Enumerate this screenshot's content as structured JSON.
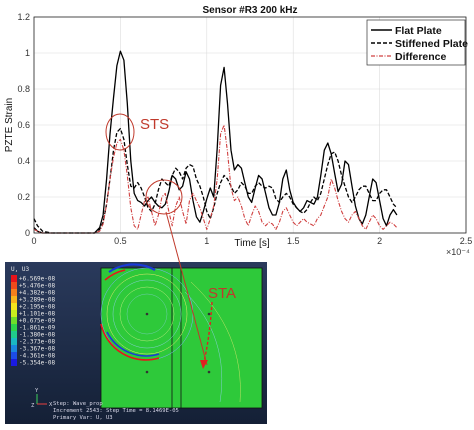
{
  "chart_data": {
    "type": "line",
    "title": "Sensor #R3 200 kHz",
    "xlabel": "Time [s]",
    "ylabel": "PZTE Strain",
    "x_multiplier": "×10⁻⁴",
    "xlim": [
      0,
      2.5
    ],
    "ylim": [
      0,
      1.2
    ],
    "xticks": [
      "0",
      "0.5",
      "1",
      "1.5",
      "2",
      "2.5"
    ],
    "yticks": [
      "0",
      "0.2",
      "0.4",
      "0.6",
      "0.8",
      "1",
      "1.2"
    ],
    "grid": true,
    "legend": "top-right",
    "x": [
      0,
      0.02,
      0.05,
      0.1,
      0.2,
      0.3,
      0.35,
      0.38,
      0.4,
      0.42,
      0.44,
      0.46,
      0.48,
      0.5,
      0.52,
      0.54,
      0.56,
      0.58,
      0.6,
      0.62,
      0.64,
      0.66,
      0.68,
      0.7,
      0.72,
      0.74,
      0.76,
      0.78,
      0.8,
      0.82,
      0.84,
      0.86,
      0.88,
      0.9,
      0.92,
      0.94,
      0.96,
      0.98,
      1.0,
      1.02,
      1.04,
      1.06,
      1.08,
      1.1,
      1.12,
      1.14,
      1.16,
      1.18,
      1.2,
      1.22,
      1.24,
      1.26,
      1.28,
      1.3,
      1.32,
      1.34,
      1.36,
      1.38,
      1.4,
      1.42,
      1.44,
      1.46,
      1.48,
      1.5,
      1.52,
      1.54,
      1.56,
      1.58,
      1.6,
      1.62,
      1.64,
      1.66,
      1.68,
      1.7,
      1.72,
      1.74,
      1.76,
      1.78,
      1.8,
      1.82,
      1.84,
      1.86,
      1.88,
      1.9,
      1.92,
      1.94,
      1.96,
      1.98,
      2.0,
      2.02,
      2.04,
      2.06,
      2.08,
      2.1
    ],
    "series": [
      {
        "name": "Flat Plate",
        "color": "#000000",
        "dash": "solid",
        "values": [
          0.03,
          0.01,
          0.0,
          0.0,
          0.0,
          0.0,
          0.0,
          0.03,
          0.1,
          0.3,
          0.55,
          0.75,
          0.93,
          1.01,
          0.96,
          0.72,
          0.4,
          0.22,
          0.18,
          0.17,
          0.15,
          0.18,
          0.2,
          0.17,
          0.15,
          0.14,
          0.16,
          0.23,
          0.32,
          0.3,
          0.24,
          0.26,
          0.34,
          0.3,
          0.18,
          0.09,
          0.06,
          0.12,
          0.19,
          0.25,
          0.2,
          0.47,
          0.82,
          0.92,
          0.72,
          0.46,
          0.35,
          0.38,
          0.36,
          0.28,
          0.2,
          0.17,
          0.25,
          0.32,
          0.3,
          0.22,
          0.14,
          0.1,
          0.1,
          0.17,
          0.3,
          0.35,
          0.24,
          0.17,
          0.14,
          0.12,
          0.14,
          0.18,
          0.17,
          0.16,
          0.2,
          0.32,
          0.46,
          0.5,
          0.44,
          0.33,
          0.23,
          0.27,
          0.4,
          0.38,
          0.26,
          0.15,
          0.08,
          0.05,
          0.1,
          0.2,
          0.3,
          0.28,
          0.18,
          0.08,
          0.04,
          0.1,
          0.13,
          0.1
        ]
      },
      {
        "name": "Stiffened Plate",
        "color": "#000000",
        "dash": "dashed",
        "values": [
          0.08,
          0.04,
          0.01,
          0.0,
          0.0,
          0.0,
          0.0,
          0.02,
          0.06,
          0.16,
          0.3,
          0.46,
          0.56,
          0.58,
          0.52,
          0.38,
          0.26,
          0.25,
          0.28,
          0.25,
          0.2,
          0.14,
          0.12,
          0.16,
          0.24,
          0.3,
          0.28,
          0.26,
          0.32,
          0.36,
          0.34,
          0.3,
          0.36,
          0.38,
          0.37,
          0.3,
          0.26,
          0.2,
          0.12,
          0.08,
          0.14,
          0.22,
          0.28,
          0.32,
          0.3,
          0.26,
          0.22,
          0.24,
          0.28,
          0.26,
          0.22,
          0.22,
          0.26,
          0.28,
          0.26,
          0.25,
          0.26,
          0.25,
          0.19,
          0.17,
          0.2,
          0.22,
          0.2,
          0.16,
          0.14,
          0.12,
          0.11,
          0.13,
          0.17,
          0.2,
          0.18,
          0.22,
          0.3,
          0.38,
          0.44,
          0.45,
          0.4,
          0.32,
          0.26,
          0.2,
          0.17,
          0.2,
          0.24,
          0.26,
          0.26,
          0.22,
          0.18,
          0.18,
          0.22,
          0.24,
          0.24,
          0.2,
          0.16,
          0.14
        ]
      },
      {
        "name": "Difference",
        "color": "#d04040",
        "dash": "dash-dot",
        "values": [
          0.02,
          0.01,
          0.0,
          0.0,
          0.0,
          0.0,
          0.0,
          0.01,
          0.05,
          0.16,
          0.3,
          0.42,
          0.5,
          0.52,
          0.46,
          0.32,
          0.14,
          0.04,
          0.02,
          0.1,
          0.18,
          0.2,
          0.12,
          0.04,
          0.1,
          0.2,
          0.22,
          0.12,
          0.04,
          0.15,
          0.2,
          0.12,
          0.05,
          0.18,
          0.22,
          0.18,
          0.14,
          0.08,
          0.02,
          0.08,
          0.15,
          0.3,
          0.55,
          0.6,
          0.45,
          0.25,
          0.18,
          0.2,
          0.15,
          0.08,
          0.04,
          0.1,
          0.15,
          0.12,
          0.06,
          0.04,
          0.06,
          0.05,
          0.02,
          0.06,
          0.12,
          0.14,
          0.1,
          0.06,
          0.04,
          0.06,
          0.08,
          0.06,
          0.05,
          0.04,
          0.08,
          0.1,
          0.15,
          0.2,
          0.3,
          0.25,
          0.18,
          0.12,
          0.08,
          0.06,
          0.1,
          0.12,
          0.08,
          0.04,
          0.02,
          0.06,
          0.1,
          0.08,
          0.04,
          0.02,
          0.04,
          0.06,
          0.05,
          0.03
        ]
      }
    ],
    "annotations": [
      {
        "text": "STS",
        "color": "#c0392b"
      },
      {
        "text": "STA",
        "color": "#c0392b"
      }
    ]
  },
  "fem_panel": {
    "legend_title": "U, U3",
    "legend_values": [
      "+6.569e-08",
      "+5.476e-08",
      "+4.382e-08",
      "+3.289e-08",
      "+2.195e-08",
      "+1.101e-08",
      "+0.675e-09",
      "-1.861e-09",
      "-1.380e-08",
      "-2.373e-08",
      "-3.367e-08",
      "-4.361e-08",
      "-5.354e-08"
    ],
    "legend_colors": [
      "#e8141b",
      "#ef4a1c",
      "#f57f1d",
      "#f8b41c",
      "#f5e51c",
      "#c8ee1e",
      "#6fdd2a",
      "#2ed24a",
      "#20c98c",
      "#1ab8c4",
      "#1a86e0",
      "#1c4ce8",
      "#1a1ae0"
    ],
    "info_lines": [
      "Step: Wave_prop",
      "Increment 2543: Step Time = 8.1469E-05",
      "Primary Var: U, U3"
    ],
    "axis_labels": [
      "Y",
      "X",
      "Z"
    ]
  }
}
